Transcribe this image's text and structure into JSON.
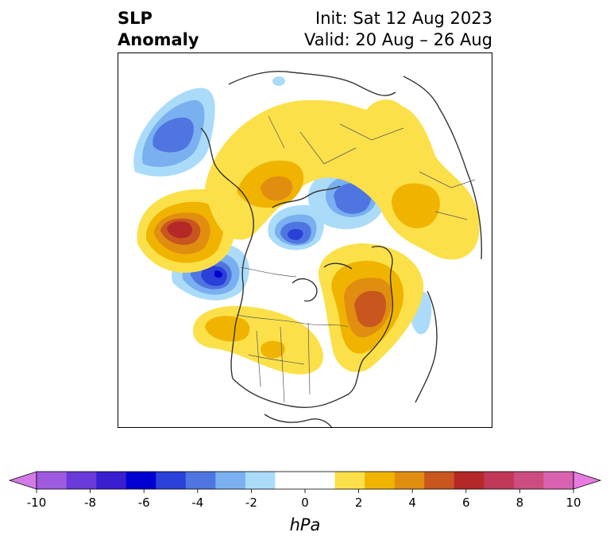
{
  "title": {
    "left_line1": "SLP",
    "left_line2": "Anomaly",
    "right_line1": "Init: Sat 12 Aug 2023",
    "right_line2": "Valid: 20 Aug – 26 Aug"
  },
  "colorbar": {
    "unit": "hPa",
    "ticks": [
      "-10",
      "-8",
      "-6",
      "-4",
      "-2",
      "0",
      "2",
      "4",
      "6",
      "8",
      "10"
    ],
    "under_color": "#d27be8",
    "over_color": "#e87be0",
    "colors": [
      "#a05ae0",
      "#6a3ad8",
      "#3a1fd0",
      "#0000d0",
      "#2a40d8",
      "#4f76e0",
      "#7ab0ef",
      "#aadcfa",
      "#ffffff",
      "#ffffff",
      "#fbe04a",
      "#f0b400",
      "#e08e10",
      "#c8561e",
      "#b42828",
      "#c03858",
      "#cc4e80",
      "#d862b0"
    ]
  },
  "map": {
    "projection": "polar stereographic",
    "region": "North America / North Atlantic / Arctic"
  }
}
